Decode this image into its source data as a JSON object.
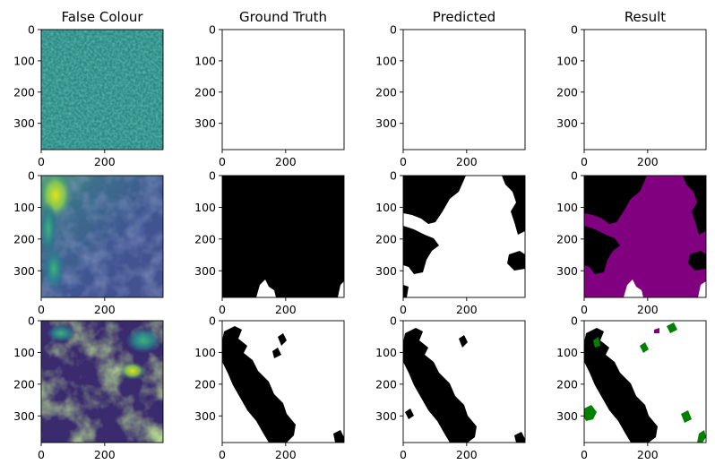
{
  "chart_data": {
    "type": "image-grid",
    "rows": 3,
    "columns": [
      "False Colour",
      "Ground Truth",
      "Predicted",
      "Result"
    ],
    "image_extent": [
      0,
      384
    ],
    "x_ticks": [
      0,
      200
    ],
    "y_ticks": [
      0,
      100,
      200,
      300
    ],
    "x_tick_labels": [
      "0",
      "200"
    ],
    "y_tick_labels": [
      "0",
      "100",
      "200",
      "300"
    ],
    "colormap_false_colour": "viridis",
    "mask_colors": {
      "land": "#000000",
      "cloud": "#ffffff"
    },
    "result_colors": {
      "true_negative": "#000000",
      "true_positive": "#ffffff",
      "false_positive": "#800080",
      "false_negative": "#008000"
    },
    "panels": [
      {
        "row": 0,
        "col": 0,
        "content": "false-colour-uniform-mid"
      },
      {
        "row": 0,
        "col": 1,
        "content": "blank"
      },
      {
        "row": 0,
        "col": 2,
        "content": "blank"
      },
      {
        "row": 0,
        "col": 3,
        "content": "blank"
      },
      {
        "row": 1,
        "col": 0,
        "content": "false-colour-haze"
      },
      {
        "row": 1,
        "col": 1,
        "content": "mask-mostly-black"
      },
      {
        "row": 1,
        "col": 2,
        "content": "mask-mostly-white"
      },
      {
        "row": 1,
        "col": 3,
        "content": "result-purple"
      },
      {
        "row": 2,
        "col": 0,
        "content": "false-colour-clouds"
      },
      {
        "row": 2,
        "col": 1,
        "content": "mask-diagonal-band"
      },
      {
        "row": 2,
        "col": 2,
        "content": "mask-diagonal-band"
      },
      {
        "row": 2,
        "col": 3,
        "content": "result-diagonal-green"
      }
    ]
  }
}
